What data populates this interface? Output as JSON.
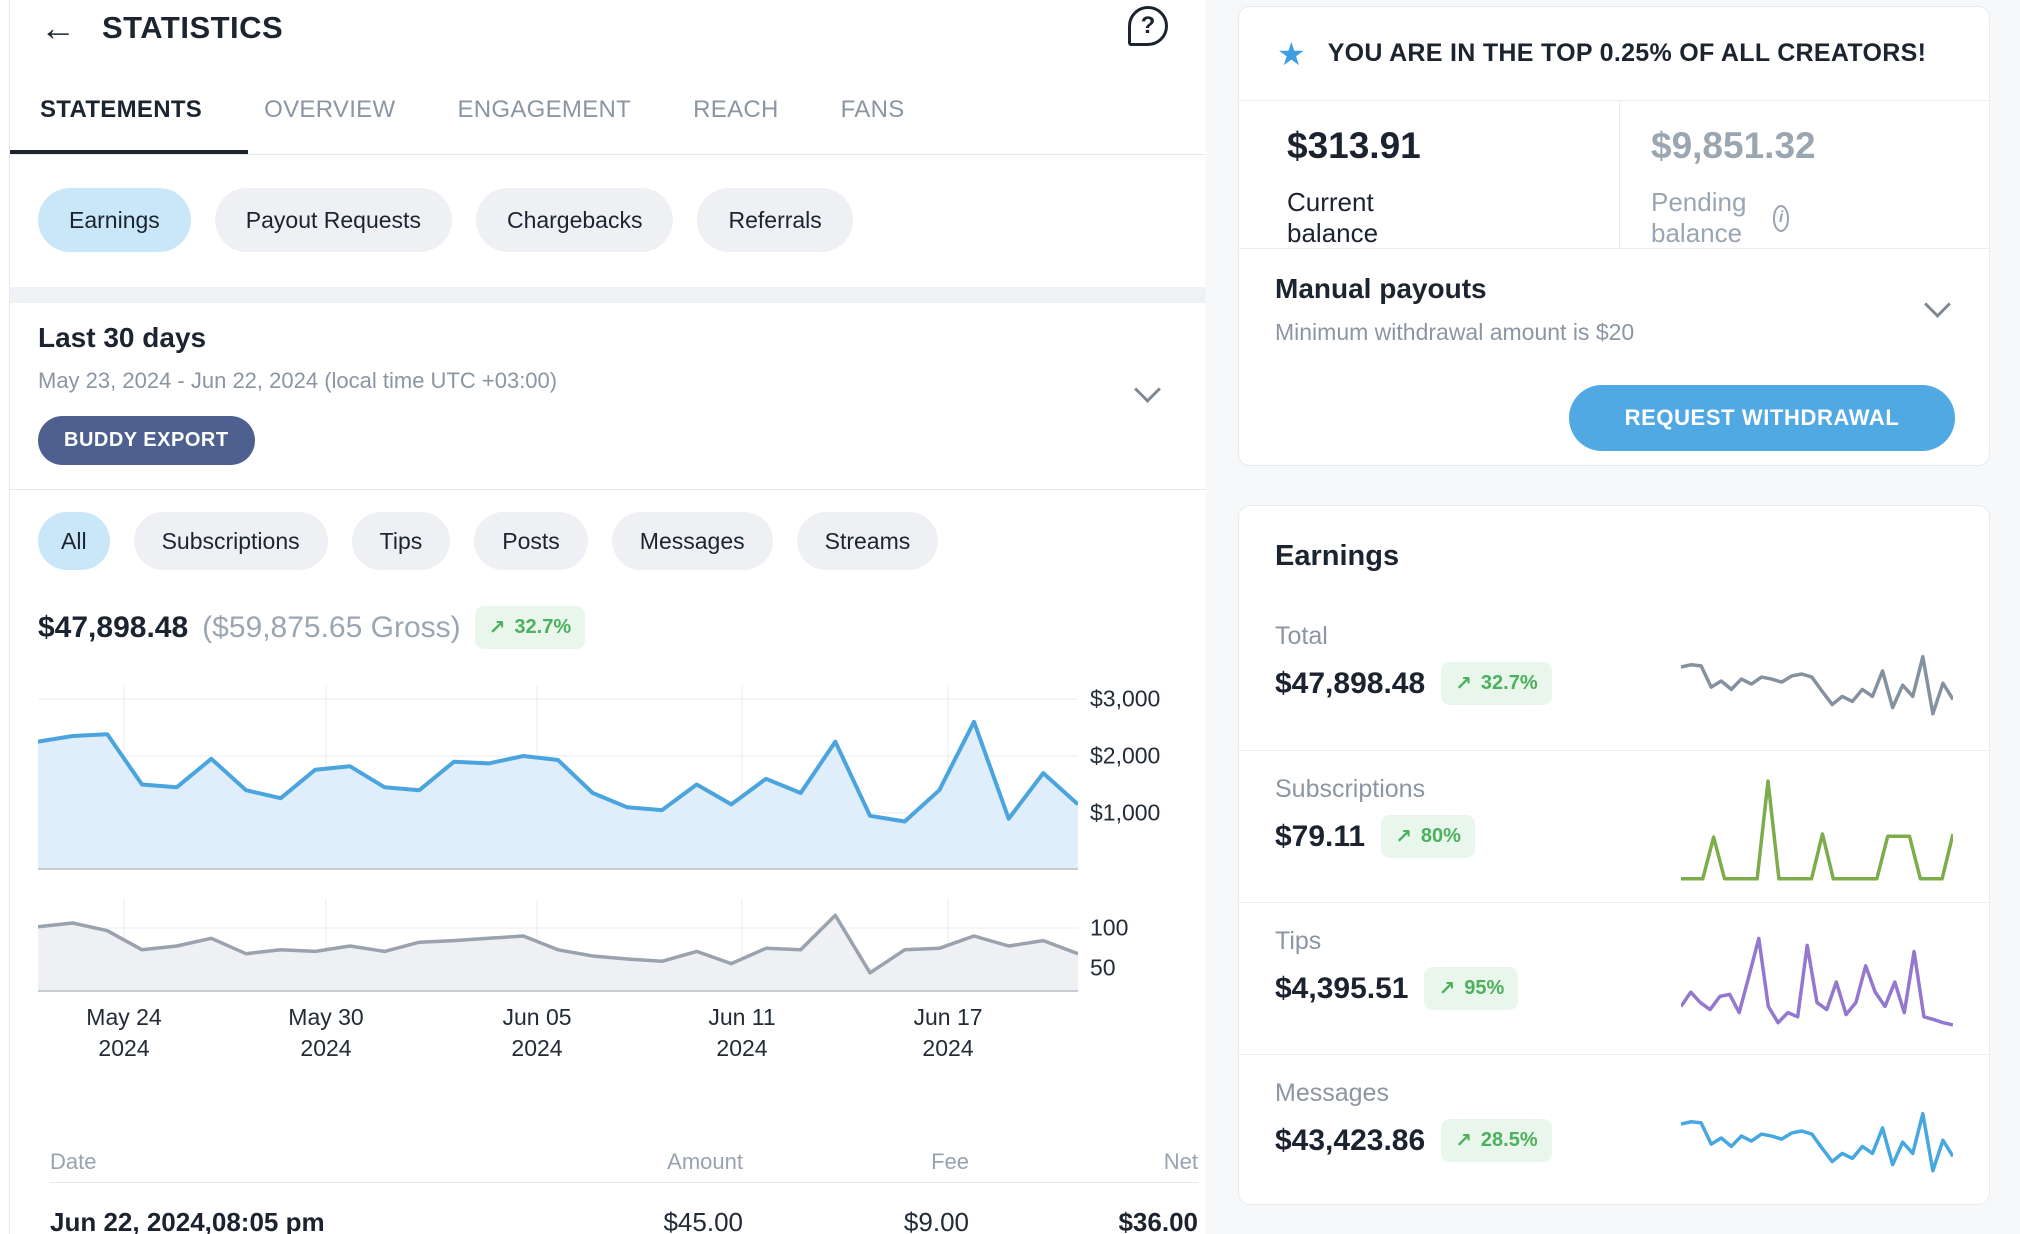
{
  "icons": {
    "back": "←",
    "help": "?",
    "trend_up": "↗",
    "star": "★",
    "info": "i"
  },
  "colors": {
    "accent_blue": "#51a9e3",
    "pill_active_blue": "#c9e7f8",
    "export_navy": "#4d608f",
    "badge_green_bg": "#e9f6ec",
    "badge_green_text": "#4cb05c",
    "star_blue": "#3f9de2"
  },
  "header": {
    "title": "STATISTICS"
  },
  "tabs": [
    {
      "label": "STATEMENTS",
      "active": true
    },
    {
      "label": "OVERVIEW",
      "active": false
    },
    {
      "label": "ENGAGEMENT",
      "active": false
    },
    {
      "label": "REACH",
      "active": false
    },
    {
      "label": "FANS",
      "active": false
    }
  ],
  "category_pills": [
    {
      "label": "Earnings",
      "active": true
    },
    {
      "label": "Payout Requests",
      "active": false
    },
    {
      "label": "Chargebacks",
      "active": false
    },
    {
      "label": "Referrals",
      "active": false
    }
  ],
  "period": {
    "title": "Last 30 days",
    "range": "May 23, 2024 - Jun 22, 2024 (local time UTC +03:00)",
    "export_label": "BUDDY EXPORT"
  },
  "filter_pills": [
    {
      "label": "All",
      "active": true
    },
    {
      "label": "Subscriptions",
      "active": false
    },
    {
      "label": "Tips",
      "active": false
    },
    {
      "label": "Posts",
      "active": false
    },
    {
      "label": "Messages",
      "active": false
    },
    {
      "label": "Streams",
      "active": false
    }
  ],
  "summary": {
    "net": "$47,898.48",
    "gross": "($59,875.65 Gross)",
    "change": "32.7%"
  },
  "table": {
    "headers": [
      "Date",
      "Amount",
      "Fee",
      "Net"
    ],
    "rows": [
      {
        "date": "Jun 22, 2024,08:05 pm",
        "amount": "$45.00",
        "fee": "$9.00",
        "net": "$36.00"
      }
    ]
  },
  "balance_card": {
    "banner": "YOU ARE IN THE TOP 0.25% OF ALL CREATORS!",
    "current_amount": "$313.91",
    "current_label": "Current balance",
    "pending_amount": "$9,851.32",
    "pending_label": "Pending balance",
    "payouts_title": "Manual payouts",
    "payouts_subtitle": "Minimum withdrawal amount is $20",
    "withdraw_button": "REQUEST WITHDRAWAL"
  },
  "earnings_card": {
    "title": "Earnings",
    "rows": [
      {
        "label": "Total",
        "value": "$47,898.48",
        "change": "32.7%"
      },
      {
        "label": "Subscriptions",
        "value": "$79.11",
        "change": "80%"
      },
      {
        "label": "Tips",
        "value": "$4,395.51",
        "change": "95%"
      },
      {
        "label": "Messages",
        "value": "$43,423.86",
        "change": "28.5%"
      }
    ]
  },
  "chart_data": {
    "main": {
      "type": "area",
      "title": "Net earnings, last 30 days",
      "unit": "USD",
      "ylim": [
        0,
        3228
      ],
      "yticks": [
        "$3,000",
        "$2,000",
        "$1,000"
      ],
      "xticks": [
        [
          "May 24",
          "2024"
        ],
        [
          "May 30",
          "2024"
        ],
        [
          "Jun 05",
          "2024"
        ],
        [
          "Jun 11",
          "2024"
        ],
        [
          "Jun 17",
          "2024"
        ]
      ],
      "line_color": "#4aa4de",
      "fill_color": "#dfeefa",
      "values": [
        2250,
        2350,
        2380,
        1500,
        1450,
        1950,
        1400,
        1260,
        1760,
        1820,
        1450,
        1400,
        1900,
        1870,
        2000,
        1930,
        1350,
        1100,
        1050,
        1500,
        1150,
        1600,
        1350,
        2250,
        950,
        850,
        1400,
        2600,
        900,
        1700,
        1150
      ]
    },
    "counts": {
      "type": "area",
      "title": "Transactions, last 30 days",
      "ylim": [
        15,
        135
      ],
      "yticks": [
        "100",
        "50"
      ],
      "line_color": "#99a2ad",
      "fill_color": "#eef0f3",
      "values": [
        100,
        105,
        95,
        70,
        75,
        85,
        65,
        70,
        68,
        75,
        68,
        80,
        82,
        85,
        88,
        70,
        62,
        58,
        55,
        68,
        52,
        72,
        70,
        115,
        40,
        70,
        72,
        88,
        75,
        82,
        65
      ]
    },
    "sparklines": {
      "total": {
        "type": "line",
        "ylim": [
          0,
          110
        ],
        "line_color": "#8492a0",
        "values": [
          62,
          64,
          63,
          42,
          48,
          40,
          50,
          45,
          52,
          50,
          47,
          53,
          55,
          52,
          38,
          25,
          33,
          28,
          40,
          33,
          58,
          22,
          44,
          33,
          72,
          16,
          46,
          30
        ]
      },
      "subscriptions": {
        "type": "line",
        "ylim": [
          0,
          110
        ],
        "line_color": "#7dac4b",
        "values": [
          4,
          4,
          4,
          45,
          4,
          4,
          4,
          4,
          100,
          4,
          4,
          4,
          4,
          48,
          4,
          4,
          4,
          4,
          4,
          46,
          46,
          46,
          4,
          4,
          4,
          48
        ]
      },
      "tips": {
        "type": "line",
        "ylim": [
          0,
          110
        ],
        "line_color": "#9478cf",
        "values": [
          28,
          42,
          32,
          25,
          38,
          40,
          22,
          58,
          95,
          28,
          12,
          22,
          18,
          88,
          32,
          25,
          52,
          20,
          32,
          68,
          42,
          28,
          52,
          22,
          82,
          18,
          15,
          12,
          10
        ]
      },
      "messages": {
        "type": "line",
        "ylim": [
          0,
          110
        ],
        "line_color": "#47a7e0",
        "values": [
          62,
          64,
          63,
          42,
          48,
          40,
          50,
          45,
          52,
          50,
          47,
          53,
          55,
          52,
          38,
          25,
          33,
          28,
          40,
          33,
          58,
          22,
          44,
          33,
          72,
          16,
          46,
          30
        ]
      }
    }
  }
}
